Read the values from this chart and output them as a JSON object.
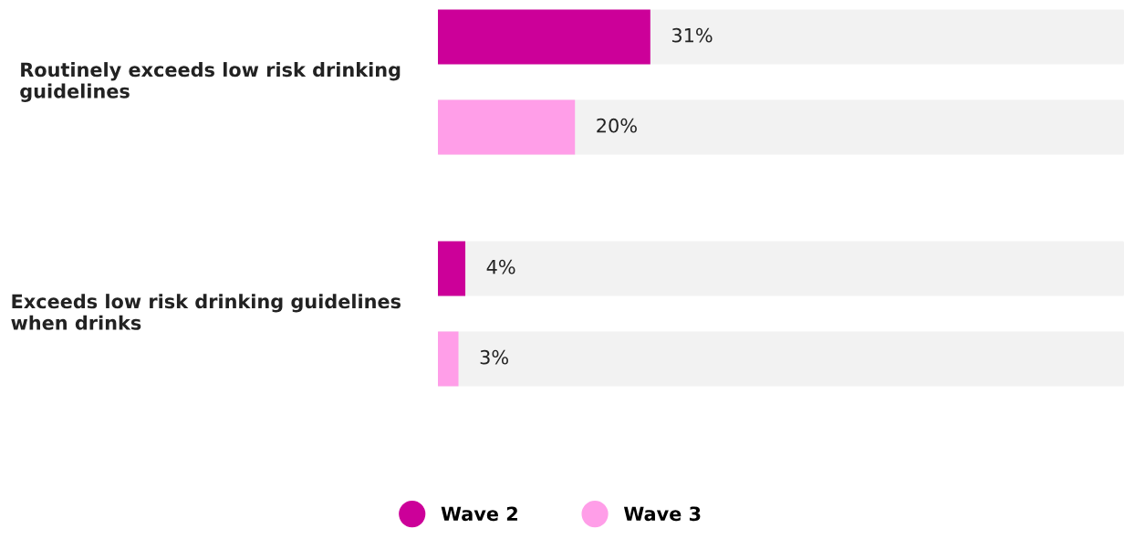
{
  "chart_data": {
    "type": "bar",
    "orientation": "horizontal",
    "categories": [
      "Routinely exceeds low risk drinking guidelines",
      "Exceeds low risk drinking guidelines when drinks"
    ],
    "series": [
      {
        "name": "Wave 2",
        "color": "#cc0099",
        "values": [
          31,
          4
        ],
        "value_labels": [
          "31%",
          "4%"
        ]
      },
      {
        "name": "Wave 3",
        "color": "#ff9ee8",
        "values": [
          20,
          3
        ],
        "value_labels": [
          "20%",
          "3%"
        ]
      }
    ],
    "tick_labels": false,
    "legend": "bottom",
    "grid": false
  }
}
